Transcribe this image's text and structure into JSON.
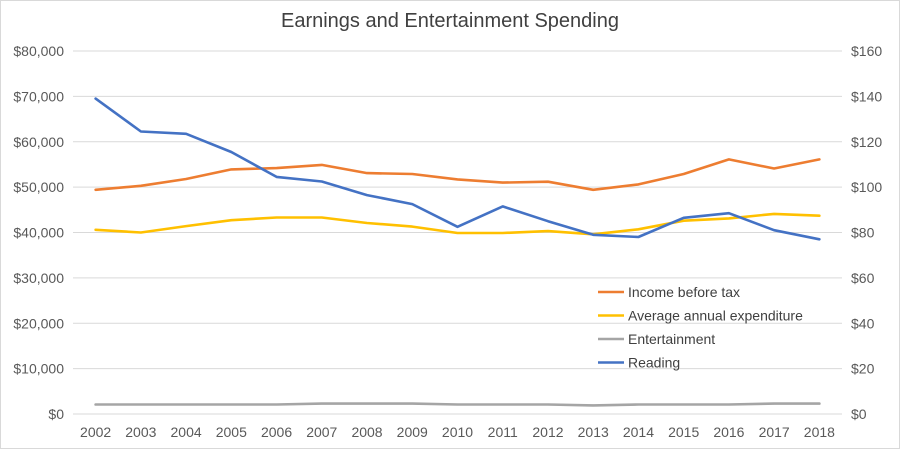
{
  "chart_data": {
    "type": "line",
    "title": "Earnings and Entertainment Spending",
    "categories": [
      "2002",
      "2003",
      "2004",
      "2005",
      "2006",
      "2007",
      "2008",
      "2009",
      "2010",
      "2011",
      "2012",
      "2013",
      "2014",
      "2015",
      "2016",
      "2017",
      "2018"
    ],
    "y_left": {
      "ylim": [
        0,
        80000
      ],
      "tick_values": [
        0,
        10000,
        20000,
        30000,
        40000,
        50000,
        60000,
        70000,
        80000
      ],
      "tick_labels": [
        "$0",
        "$10,000",
        "$20,000",
        "$30,000",
        "$40,000",
        "$50,000",
        "$60,000",
        "$70,000",
        "$80,000"
      ]
    },
    "y_right": {
      "ylim": [
        0,
        160
      ],
      "tick_values": [
        0,
        20,
        40,
        60,
        80,
        100,
        120,
        140,
        160
      ],
      "tick_labels": [
        "$0",
        "$20",
        "$40",
        "$60",
        "$80",
        "$100",
        "$120",
        "$140",
        "$160"
      ]
    },
    "grid": true,
    "legend_position": "bottom-right",
    "series": [
      {
        "name": "Income before tax",
        "axis": "left",
        "color": "#ed7d31",
        "values": [
          49400,
          50300,
          51800,
          53900,
          54200,
          54900,
          53100,
          52900,
          51700,
          51000,
          51200,
          49400,
          50600,
          52900,
          56100,
          54100,
          56100
        ]
      },
      {
        "name": "Average annual expenditure",
        "axis": "left",
        "color": "#ffc000",
        "values": [
          40600,
          40000,
          41400,
          42700,
          43300,
          43300,
          42100,
          41300,
          39900,
          39900,
          40300,
          39600,
          40700,
          42600,
          43100,
          44100,
          43700
        ]
      },
      {
        "name": "Entertainment",
        "axis": "left",
        "color": "#a5a5a5",
        "values": [
          2100,
          2100,
          2100,
          2100,
          2100,
          2300,
          2300,
          2300,
          2100,
          2100,
          2100,
          1900,
          2100,
          2100,
          2100,
          2300,
          2300
        ]
      },
      {
        "name": "Reading",
        "axis": "right",
        "color": "#4472c4",
        "values": [
          139,
          124.5,
          123.5,
          115.5,
          104.5,
          102.5,
          96.5,
          92.5,
          82.5,
          91.5,
          85,
          79,
          78,
          86.5,
          88.5,
          81,
          77
        ]
      }
    ]
  }
}
